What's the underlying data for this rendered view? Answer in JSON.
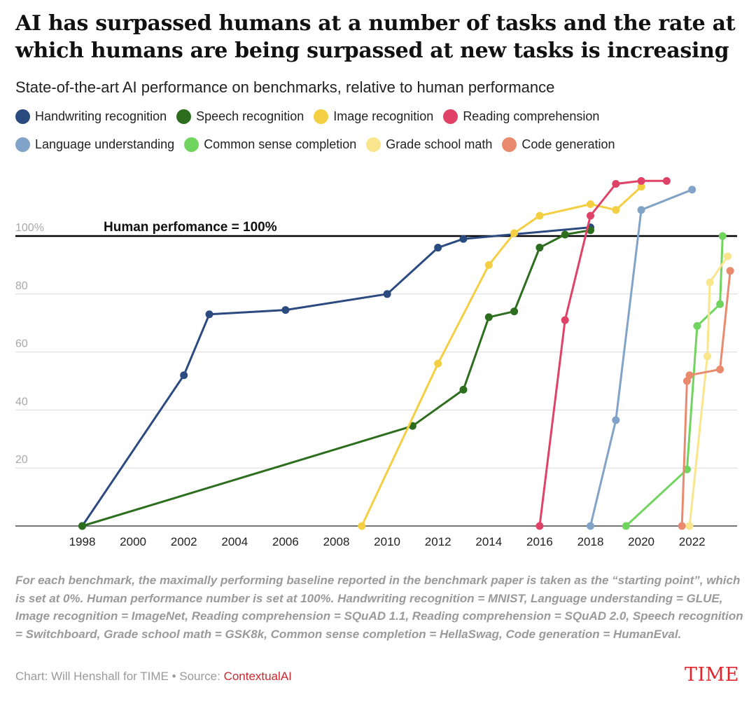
{
  "chart_data": {
    "type": "line",
    "title": "AI has surpassed humans at a number of tasks and the rate at which humans are being surpassed at new tasks is increasing",
    "subtitle": "State-of-the-art AI performance on benchmarks, relative to human performance",
    "xlim": [
      1997.3,
      2023.8
    ],
    "ylim": [
      0,
      126
    ],
    "x_ticks": [
      1998,
      2000,
      2002,
      2004,
      2006,
      2008,
      2010,
      2012,
      2014,
      2016,
      2018,
      2020,
      2022
    ],
    "x_tick_labels": [
      "1998",
      "2000",
      "2002",
      "2004",
      "2006",
      "2008",
      "2010",
      "2012",
      "2014",
      "2016",
      "2018",
      "2020",
      "2022"
    ],
    "y_ticks": [
      20,
      40,
      60,
      80,
      100
    ],
    "y_tick_labels": [
      "20",
      "40",
      "60",
      "80",
      "100%"
    ],
    "grid": true,
    "legend_position": "top",
    "reference_line": {
      "y": 100,
      "label": "Human perfomance = 100%",
      "color": "#000000"
    },
    "series": [
      {
        "name": "Handwriting recognition",
        "color": "#2b4a7f",
        "points": [
          [
            1998,
            0
          ],
          [
            2002,
            52
          ],
          [
            2003,
            73
          ],
          [
            2006,
            74.5
          ],
          [
            2010,
            80
          ],
          [
            2012,
            96
          ],
          [
            2013,
            99
          ],
          [
            2018,
            103
          ]
        ]
      },
      {
        "name": "Speech recognition",
        "color": "#2d6e1e",
        "points": [
          [
            1998,
            0
          ],
          [
            2011,
            34.5
          ],
          [
            2013,
            47
          ],
          [
            2014,
            72
          ],
          [
            2015,
            74
          ],
          [
            2016,
            96
          ],
          [
            2017,
            100.5
          ],
          [
            2018,
            102
          ]
        ]
      },
      {
        "name": "Image recognition",
        "color": "#f4cf43",
        "points": [
          [
            2009,
            0
          ],
          [
            2012,
            56
          ],
          [
            2014,
            90
          ],
          [
            2015,
            101
          ],
          [
            2016,
            107
          ],
          [
            2018,
            111
          ],
          [
            2019,
            109
          ],
          [
            2020,
            117
          ]
        ]
      },
      {
        "name": "Reading comprehension",
        "color": "#df4266",
        "points": [
          [
            2016,
            0
          ],
          [
            2017,
            71
          ],
          [
            2018,
            107
          ],
          [
            2019,
            118
          ],
          [
            2020,
            119
          ],
          [
            2021,
            119
          ]
        ]
      },
      {
        "name": "Language understanding",
        "color": "#81a3c8",
        "points": [
          [
            2018,
            0
          ],
          [
            2019,
            36.5
          ],
          [
            2020,
            109
          ],
          [
            2022,
            116
          ]
        ]
      },
      {
        "name": "Common sense completion",
        "color": "#71d45f",
        "points": [
          [
            2019.4,
            0
          ],
          [
            2021.8,
            19.5
          ],
          [
            2022.2,
            69
          ],
          [
            2023.1,
            76.5
          ],
          [
            2023.2,
            100
          ]
        ]
      },
      {
        "name": "Grade school math",
        "color": "#f9e58c",
        "points": [
          [
            2021.9,
            0
          ],
          [
            2022.6,
            58.5
          ],
          [
            2022.7,
            84
          ],
          [
            2023.4,
            93
          ]
        ]
      },
      {
        "name": "Code generation",
        "color": "#e98a6e",
        "points": [
          [
            2021.6,
            0
          ],
          [
            2021.8,
            50
          ],
          [
            2021.9,
            52
          ],
          [
            2023.1,
            54
          ],
          [
            2023.5,
            88
          ]
        ]
      }
    ]
  },
  "footnote": "For each benchmark, the maximally performing baseline reported in the benchmark paper is taken as the “starting point”, which is set at 0%. Human performance number is set at 100%. Handwriting recognition = MNIST, Language understanding = GLUE, Image recognition = ImageNet, Reading comprehension = SQuAD 1.1, Reading comprehension = SQuAD 2.0, Speech recognition = Switchboard, Grade school math = GSK8k, Common sense completion = HellaSwag, Code generation = HumanEval.",
  "credit": {
    "text": "Chart: Will Henshall for TIME • Source: ",
    "source": "ContextualAI"
  },
  "brand": "TIME"
}
